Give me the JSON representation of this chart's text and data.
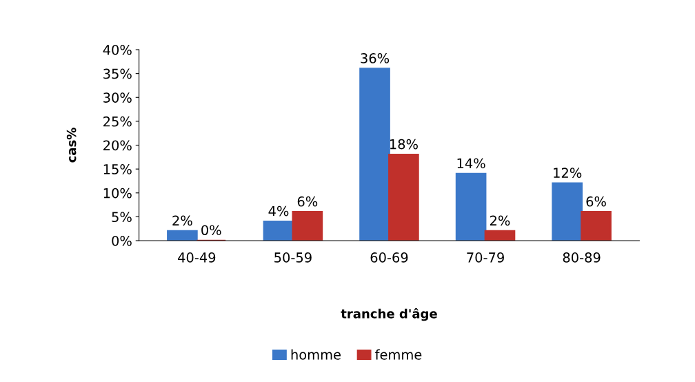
{
  "chart_data": {
    "type": "bar",
    "xlabel": "tranche d'âge",
    "ylabel": "cas%",
    "categories": [
      "40-49",
      "50-59",
      "60-69",
      "70-79",
      "80-89"
    ],
    "series": [
      {
        "name": "homme",
        "color": "#3b78c9",
        "values": [
          2,
          4,
          36,
          14,
          12
        ],
        "value_labels": [
          "2%",
          "4%",
          "36%",
          "14%",
          "12%"
        ]
      },
      {
        "name": "femme",
        "color": "#c0302b",
        "values": [
          0,
          6,
          18,
          2,
          6
        ],
        "value_labels": [
          "0%",
          "6%",
          "18%",
          "2%",
          "6%"
        ]
      }
    ],
    "ylim": [
      0,
      40
    ],
    "yticks": [
      {
        "value": 0,
        "label": "0%"
      },
      {
        "value": 5,
        "label": "5%"
      },
      {
        "value": 10,
        "label": "10%"
      },
      {
        "value": 15,
        "label": "15%"
      },
      {
        "value": 20,
        "label": "20%"
      },
      {
        "value": 25,
        "label": "25%"
      },
      {
        "value": 30,
        "label": "30%"
      },
      {
        "value": 35,
        "label": "35%"
      },
      {
        "value": 40,
        "label": "40%"
      }
    ],
    "grid": false,
    "legend": "bottom"
  }
}
